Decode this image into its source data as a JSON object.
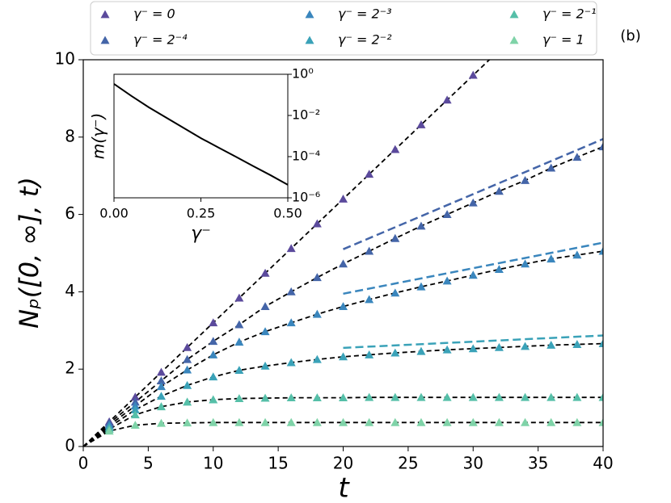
{
  "chart_data": [
    {
      "type": "scatter",
      "panel_label": "(b)",
      "xlabel": "t",
      "ylabel": "Nₚ([0, ∞], t)",
      "x": [
        2,
        4,
        6,
        8,
        10,
        12,
        14,
        16,
        18,
        20,
        22,
        24,
        26,
        28,
        30,
        32,
        34,
        36,
        38,
        40
      ],
      "series": [
        {
          "name": "γ⁻ = 0",
          "color": "#5b4a9c",
          "values": [
            0.64,
            1.28,
            1.92,
            2.56,
            3.2,
            3.84,
            4.48,
            5.12,
            5.76,
            6.4,
            7.04,
            7.68,
            8.32,
            8.96,
            9.6,
            null,
            null,
            null,
            null,
            null
          ]
        },
        {
          "name": "γ⁻ = 2⁻⁴",
          "color": "#4465a8",
          "values": [
            0.6,
            1.15,
            1.7,
            2.25,
            2.72,
            3.15,
            3.62,
            4.0,
            4.37,
            4.72,
            5.05,
            5.38,
            5.7,
            6.0,
            6.3,
            6.6,
            6.88,
            7.2,
            7.48,
            7.75
          ]
        },
        {
          "name": "γ⁻ = 2⁻³",
          "color": "#3a86bd",
          "values": [
            0.55,
            1.05,
            1.55,
            1.98,
            2.37,
            2.7,
            2.97,
            3.2,
            3.42,
            3.62,
            3.8,
            3.97,
            4.13,
            4.28,
            4.43,
            4.58,
            4.72,
            4.85,
            4.95,
            5.05
          ]
        },
        {
          "name": "γ⁻ = 2⁻²",
          "color": "#3aa2b8",
          "values": [
            0.5,
            0.95,
            1.3,
            1.58,
            1.8,
            1.97,
            2.08,
            2.17,
            2.25,
            2.32,
            2.37,
            2.42,
            2.46,
            2.5,
            2.53,
            2.56,
            2.59,
            2.62,
            2.64,
            2.66
          ]
        },
        {
          "name": "γ⁻ = 2⁻¹",
          "color": "#55bfa8",
          "values": [
            0.45,
            0.82,
            1.03,
            1.15,
            1.21,
            1.24,
            1.25,
            1.26,
            1.26,
            1.26,
            1.27,
            1.27,
            1.27,
            1.27,
            1.27,
            1.27,
            1.27,
            1.27,
            1.27,
            1.27
          ]
        },
        {
          "name": "γ⁻ = 1",
          "color": "#7fd3a8",
          "values": [
            0.4,
            0.55,
            0.6,
            0.61,
            0.62,
            0.62,
            0.62,
            0.62,
            0.62,
            0.62,
            0.62,
            0.62,
            0.62,
            0.62,
            0.62,
            0.62,
            0.62,
            0.62,
            0.62,
            0.62
          ]
        }
      ],
      "asymptotes": [
        {
          "color": "#4465a8",
          "x": [
            20,
            40
          ],
          "values": [
            5.1,
            7.95
          ]
        },
        {
          "color": "#3a86bd",
          "x": [
            20,
            40
          ],
          "values": [
            3.95,
            5.27
          ]
        },
        {
          "color": "#3aa2b8",
          "x": [
            20,
            40
          ],
          "values": [
            2.55,
            2.87
          ]
        }
      ],
      "xlim": [
        0,
        40
      ],
      "xticks": [
        0,
        5,
        10,
        15,
        20,
        25,
        30,
        35,
        40
      ],
      "ylim": [
        0,
        10
      ],
      "yticks": [
        0,
        2,
        4,
        6,
        8,
        10
      ]
    },
    {
      "type": "line",
      "xlabel": "γ⁻",
      "ylabel": "m(γ⁻)",
      "x": [
        0,
        0.05,
        0.1,
        0.15,
        0.2,
        0.25,
        0.3,
        0.35,
        0.4,
        0.45,
        0.5
      ],
      "values": [
        0.34,
        0.089,
        0.025,
        0.0079,
        0.0025,
        0.00079,
        0.00028,
        0.0001,
        3.5e-05,
        1.26e-05,
        4.3e-06
      ],
      "color": "#000000",
      "log_y": true,
      "xlim": [
        0,
        0.5
      ],
      "xticks": [
        {
          "value": 0,
          "label": "0.00"
        },
        0.25,
        {
          "value": 0.5,
          "label": "0.50"
        }
      ],
      "ylim": [
        1e-06,
        1
      ],
      "yticks": [
        {
          "value": 1,
          "label": "10⁰"
        },
        {
          "value": 0.01,
          "label": "10⁻²"
        },
        {
          "value": 0.0001,
          "label": "10⁻⁴"
        },
        {
          "value": 1e-06,
          "label": "10⁻⁶"
        }
      ]
    }
  ]
}
